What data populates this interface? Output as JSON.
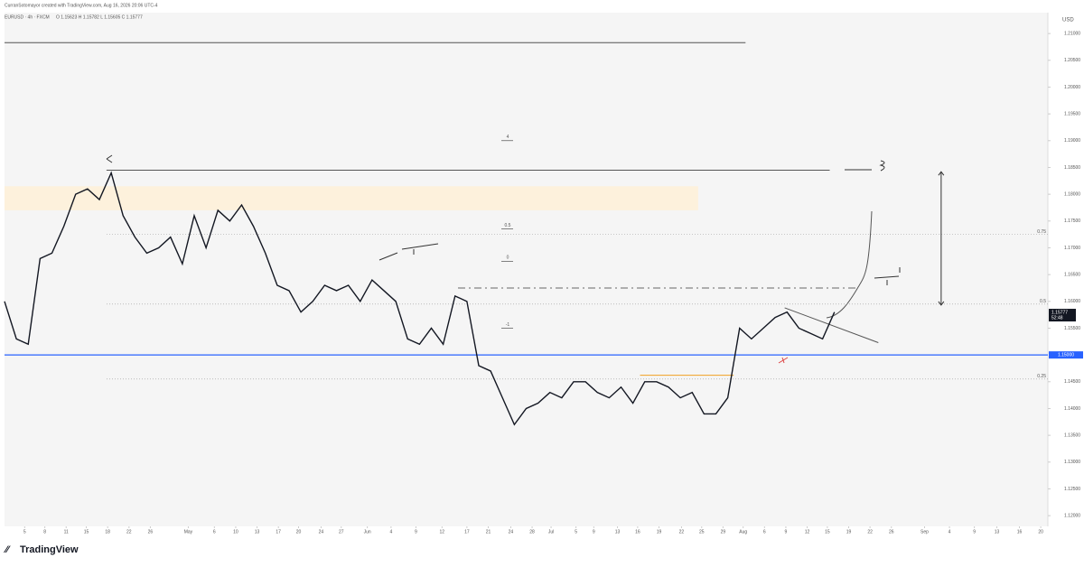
{
  "header": {
    "credit": "CurranSotomayor created with TradingView.com, Aug 16, 2026 20:06 UTC-4",
    "symbol": "EURUSD · 4h · FXCM",
    "ohlc": "O 1.15623 H 1.15782 L 1.15605 C 1.15777"
  },
  "footer": {
    "logo": "TradingView"
  },
  "chart_data": {
    "type": "line",
    "currency": "USD",
    "x": [
      0,
      1,
      2,
      3,
      4,
      5,
      6,
      7,
      8,
      9,
      10,
      11,
      12,
      13,
      14,
      15,
      16,
      17,
      18,
      19,
      20,
      21,
      22,
      23,
      24,
      25,
      26,
      27,
      28,
      29,
      30,
      31,
      32,
      33,
      34,
      35,
      36,
      37,
      38,
      39,
      40,
      41,
      42,
      43,
      44,
      45,
      46,
      47,
      48,
      49,
      50,
      51,
      52,
      53,
      54,
      55,
      56,
      57,
      58,
      59,
      60,
      61,
      62,
      63,
      64,
      65,
      66,
      67,
      68,
      69,
      70
    ],
    "series": [
      {
        "name": "EURUSD",
        "color": "#131722",
        "values": [
          1.16,
          1.153,
          1.152,
          1.168,
          1.169,
          1.174,
          1.18,
          1.181,
          1.179,
          1.184,
          1.176,
          1.172,
          1.169,
          1.17,
          1.172,
          1.167,
          1.176,
          1.17,
          1.177,
          1.175,
          1.178,
          1.174,
          1.169,
          1.163,
          1.162,
          1.158,
          1.16,
          1.163,
          1.162,
          1.163,
          1.16,
          1.164,
          1.162,
          1.16,
          1.153,
          1.152,
          1.155,
          1.152,
          1.161,
          1.16,
          1.148,
          1.147,
          1.142,
          1.137,
          1.14,
          1.141,
          1.143,
          1.142,
          1.145,
          1.145,
          1.143,
          1.142,
          1.144,
          1.141,
          1.145,
          1.145,
          1.144,
          1.142,
          1.143,
          1.139,
          1.139,
          1.142,
          1.155,
          1.153,
          1.155,
          1.157,
          1.158,
          1.155,
          1.154,
          1.153,
          1.158
        ]
      }
    ],
    "xlim": [
      0,
      88
    ],
    "ylim": [
      1.118,
      1.2139
    ],
    "xticks": [
      {
        "value": 1.7,
        "label": "5"
      },
      {
        "value": 3.4,
        "label": "8"
      },
      {
        "value": 5.2,
        "label": "11"
      },
      {
        "value": 6.9,
        "label": "15"
      },
      {
        "value": 8.7,
        "label": "18"
      },
      {
        "value": 10.5,
        "label": "22"
      },
      {
        "value": 12.3,
        "label": "26"
      },
      {
        "value": 15.5,
        "label": "May"
      },
      {
        "value": 17.7,
        "label": "6"
      },
      {
        "value": 19.5,
        "label": "10"
      },
      {
        "value": 21.3,
        "label": "13"
      },
      {
        "value": 23.1,
        "label": "17"
      },
      {
        "value": 24.8,
        "label": "20"
      },
      {
        "value": 26.7,
        "label": "24"
      },
      {
        "value": 28.4,
        "label": "27"
      },
      {
        "value": 30.6,
        "label": "Jun"
      },
      {
        "value": 32.6,
        "label": "4"
      },
      {
        "value": 34.7,
        "label": "9"
      },
      {
        "value": 36.9,
        "label": "12"
      },
      {
        "value": 39.0,
        "label": "17"
      },
      {
        "value": 40.8,
        "label": "21"
      },
      {
        "value": 42.7,
        "label": "24"
      },
      {
        "value": 44.5,
        "label": "28"
      },
      {
        "value": 46.1,
        "label": "Jul"
      },
      {
        "value": 48.2,
        "label": "5"
      },
      {
        "value": 49.7,
        "label": "9"
      },
      {
        "value": 51.7,
        "label": "13"
      },
      {
        "value": 53.4,
        "label": "16"
      },
      {
        "value": 55.2,
        "label": "19"
      },
      {
        "value": 57.1,
        "label": "22"
      },
      {
        "value": 58.8,
        "label": "25"
      },
      {
        "value": 60.6,
        "label": "29"
      },
      {
        "value": 62.3,
        "label": "Aug"
      },
      {
        "value": 64.1,
        "label": "6"
      },
      {
        "value": 65.9,
        "label": "9"
      },
      {
        "value": 67.7,
        "label": "12"
      },
      {
        "value": 69.4,
        "label": "15"
      },
      {
        "value": 71.2,
        "label": "19"
      },
      {
        "value": 73.0,
        "label": "22"
      },
      {
        "value": 74.8,
        "label": "26"
      },
      {
        "value": 77.6,
        "label": "Sep"
      },
      {
        "value": 79.7,
        "label": "4"
      },
      {
        "value": 81.8,
        "label": "9"
      },
      {
        "value": 83.7,
        "label": "13"
      },
      {
        "value": 85.6,
        "label": "16"
      },
      {
        "value": 87.4,
        "label": "20"
      }
    ],
    "yticks": [
      {
        "value": 1.12,
        "label": "1.12000"
      },
      {
        "value": 1.125,
        "label": "1.12500"
      },
      {
        "value": 1.13,
        "label": "1.13000"
      },
      {
        "value": 1.135,
        "label": "1.13500"
      },
      {
        "value": 1.14,
        "label": "1.14000"
      },
      {
        "value": 1.145,
        "label": "1.14500"
      },
      {
        "value": 1.155,
        "label": "1.15500"
      },
      {
        "value": 1.16,
        "label": "1.16000"
      },
      {
        "value": 1.165,
        "label": "1.16500"
      },
      {
        "value": 1.17,
        "label": "1.17000"
      },
      {
        "value": 1.175,
        "label": "1.17500"
      },
      {
        "value": 1.18,
        "label": "1.18000"
      },
      {
        "value": 1.185,
        "label": "1.18500"
      },
      {
        "value": 1.19,
        "label": "1.19000"
      },
      {
        "value": 1.195,
        "label": "1.19500"
      },
      {
        "value": 1.2,
        "label": "1.20000"
      },
      {
        "value": 1.205,
        "label": "1.20500"
      },
      {
        "value": 1.21,
        "label": "1.21000"
      }
    ],
    "last_price": {
      "value": 1.15777,
      "label": "1.15777",
      "countdown": "52:48"
    },
    "key_level": {
      "value": 1.15,
      "label": "1.15000",
      "color": "#2962ff"
    },
    "fib_levels": [
      {
        "value": 1.1725,
        "label": "0.75"
      },
      {
        "value": 1.1595,
        "label": "0.5"
      },
      {
        "value": 1.1455,
        "label": "0.25"
      }
    ],
    "projection_labels": [
      {
        "value": 1.19,
        "label": "4"
      },
      {
        "value": 1.1735,
        "label": "0.5"
      },
      {
        "value": 1.1675,
        "label": "0"
      },
      {
        "value": 1.155,
        "label": "-1"
      }
    ],
    "lines": [
      {
        "x": [
          0,
          62.5
        ],
        "values": [
          1.2083,
          1.2083
        ],
        "color": "#555555"
      },
      {
        "x": [
          8.6,
          69.6
        ],
        "values": [
          1.1845,
          1.1845
        ],
        "color": "#555555"
      },
      {
        "x": [
          53.6,
          61.5
        ],
        "values": [
          1.1462,
          1.1462
        ],
        "color": "#f0a020"
      },
      {
        "x": [
          65.8,
          73.7
        ],
        "values": [
          1.1588,
          1.1523
        ],
        "color": "#555555"
      }
    ],
    "zone": {
      "x": [
        0,
        58.5
      ],
      "values": [
        1.177,
        1.1815
      ],
      "color": "#fdf1dc"
    },
    "range_arrow": {
      "x": 79,
      "values": [
        1.1842,
        1.1593
      ]
    }
  }
}
